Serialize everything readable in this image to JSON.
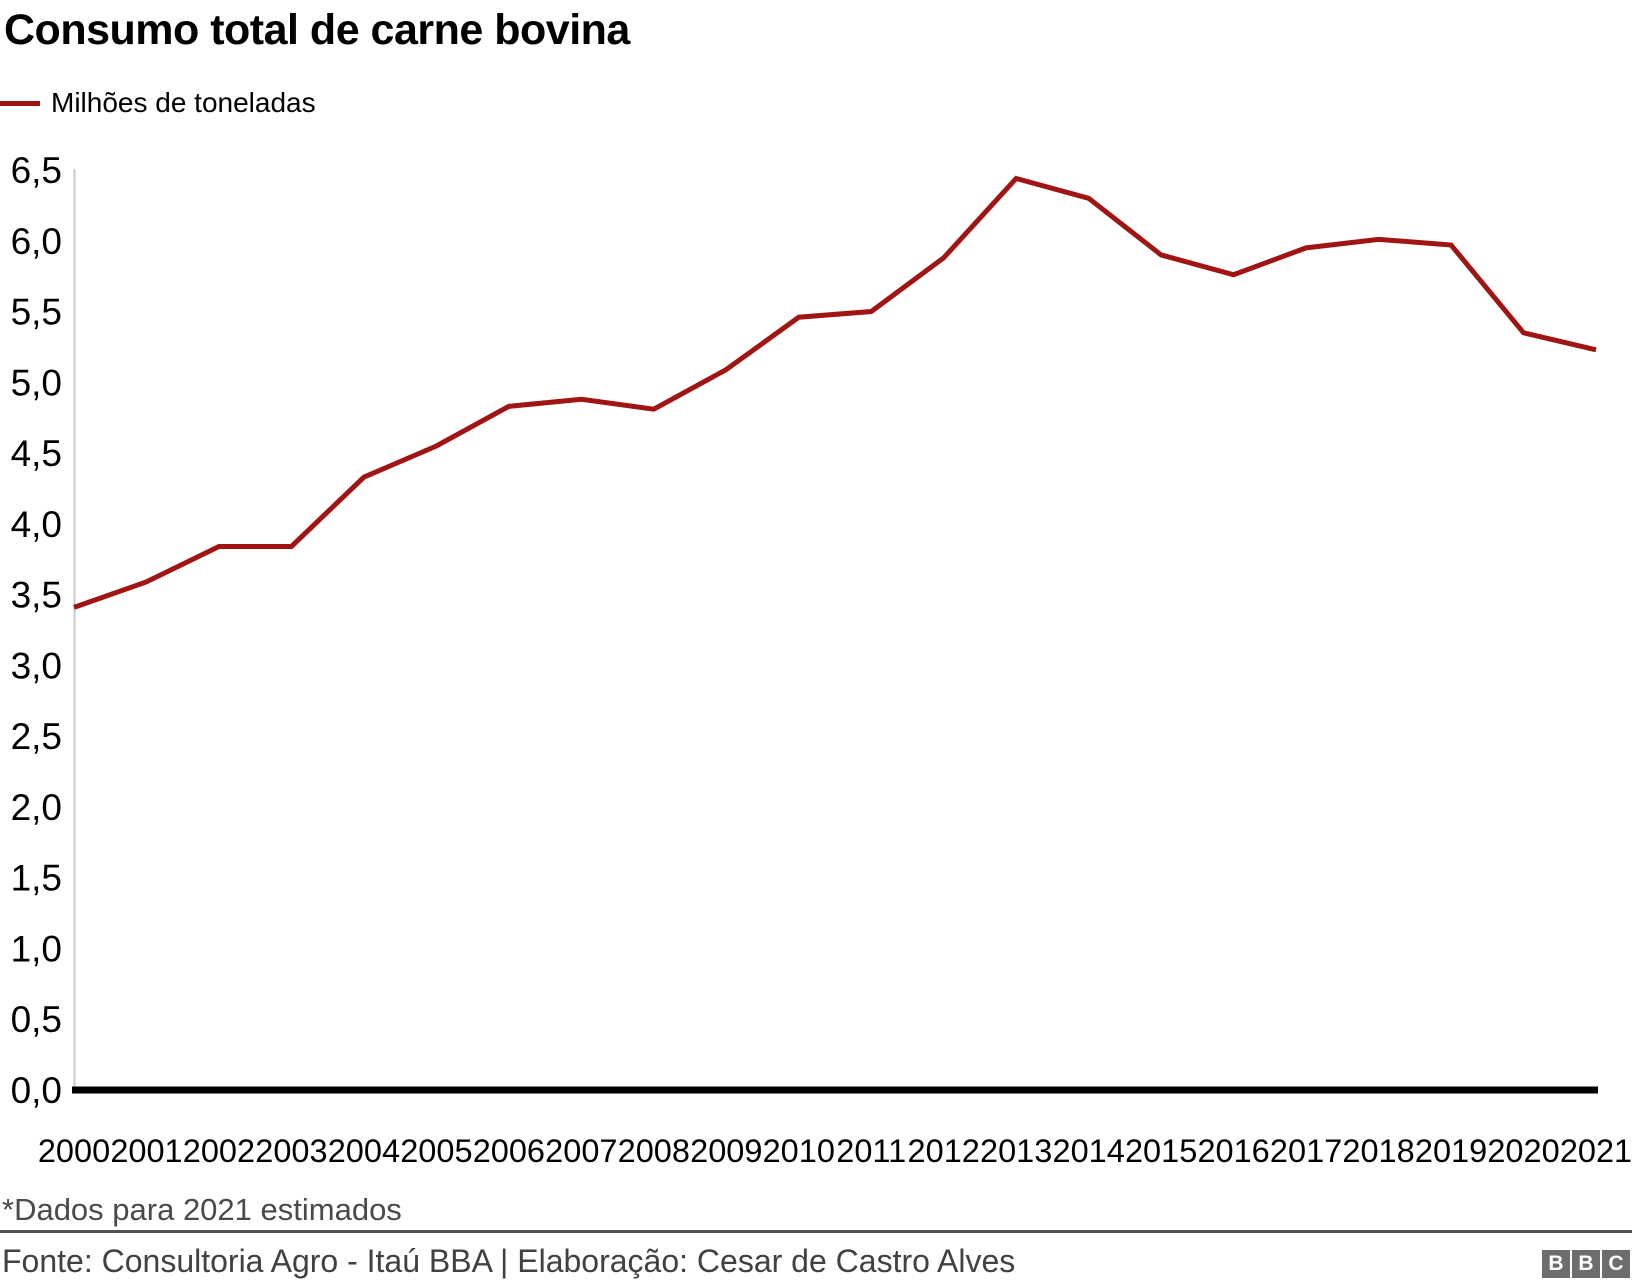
{
  "title": "Consumo total de carne bovina",
  "legend": {
    "label": "Milhões de toneladas",
    "swatch_color": "#a11414"
  },
  "chart_data": {
    "type": "line",
    "title": "Consumo total de carne bovina",
    "ylabel": "Milhões de toneladas",
    "xlabel": "",
    "x": [
      2000,
      2001,
      2002,
      2003,
      2004,
      2005,
      2006,
      2007,
      2008,
      2009,
      2010,
      2011,
      2012,
      2013,
      2014,
      2015,
      2016,
      2017,
      2018,
      2019,
      2020,
      2021
    ],
    "x_tick_labels": [
      "2000",
      "2001",
      "2002",
      "2003",
      "2004",
      "2005",
      "2006",
      "2007",
      "2008",
      "2009",
      "2010",
      "2011",
      "2012",
      "2013",
      "2014",
      "2015",
      "2016",
      "2017",
      "2018",
      "2019",
      "2020",
      "2021"
    ],
    "series": [
      {
        "name": "Milhões de toneladas",
        "color": "#a11414",
        "values": [
          3.41,
          3.59,
          3.84,
          3.84,
          4.33,
          4.55,
          4.83,
          4.88,
          4.81,
          5.09,
          5.46,
          5.5,
          5.88,
          6.44,
          6.3,
          5.9,
          5.76,
          5.95,
          6.01,
          5.97,
          5.35,
          5.23
        ]
      }
    ],
    "ylim": [
      0,
      6.5
    ],
    "y_tick_step": 0.5,
    "y_tick_labels": [
      "0,0",
      "0,5",
      "1,0",
      "1,5",
      "2,0",
      "2,5",
      "3,0",
      "3,5",
      "4,0",
      "4,5",
      "5,0",
      "5,5",
      "6,0",
      "6,5"
    ],
    "grid": false,
    "legend_position": "top-left"
  },
  "footnote": "*Dados para 2021 estimados",
  "source": "Fonte: Consultoria Agro - Itaú BBA | Elaboração: Cesar de Castro Alves",
  "logo": {
    "letters": [
      "B",
      "B",
      "C"
    ]
  },
  "colors": {
    "line": "#a11414",
    "text": "#000000",
    "muted_text": "#4a4a4a",
    "divider": "#505050",
    "y_axis_line": "#c9c9c9",
    "x_axis_line": "#000000",
    "logo_bg": "#6d6d6d"
  }
}
